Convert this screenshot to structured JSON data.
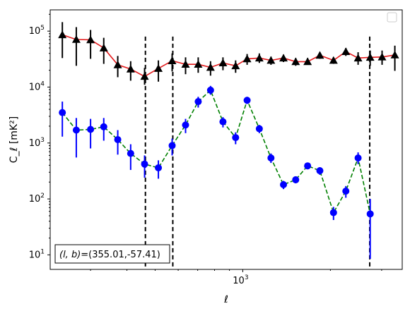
{
  "chart_data": {
    "type": "scatter",
    "title": "",
    "xlabel": "ℓ",
    "ylabel": "C_ℓ [mK²]",
    "x_scale": "log",
    "y_scale": "log",
    "xlim": [
      218,
      3530
    ],
    "ylim": [
      5.5,
      240000
    ],
    "x_tick_labels": [
      {
        "value": 1000,
        "base": "10",
        "exp": "3"
      }
    ],
    "y_tick_labels": [
      {
        "value": 10,
        "base": "10",
        "exp": "1"
      },
      {
        "value": 100,
        "base": "10",
        "exp": "2"
      },
      {
        "value": 1000,
        "base": "10",
        "exp": "3"
      },
      {
        "value": 10000,
        "base": "10",
        "exp": "4"
      },
      {
        "value": 100000,
        "base": "10",
        "exp": "5"
      }
    ],
    "legend_placement": "top-right",
    "annotation": {
      "prefix": "(l, b)",
      "value": "=(355.01,-57.41)"
    },
    "vlines": [
      463,
      575,
      2730
    ],
    "series": [
      {
        "marker": "triangle",
        "marker_color": "#000000",
        "line_color": "#e31a1c",
        "line_style": "solid",
        "points": [
          {
            "x": 240,
            "y": 86000,
            "lo": 33000,
            "hi": 145000
          },
          {
            "x": 268,
            "y": 71000,
            "lo": 24000,
            "hi": 118000
          },
          {
            "x": 300,
            "y": 70000,
            "lo": 32000,
            "hi": 105000
          },
          {
            "x": 333,
            "y": 50000,
            "lo": 26000,
            "hi": 76000
          },
          {
            "x": 372,
            "y": 25000,
            "lo": 15000,
            "hi": 36000
          },
          {
            "x": 412,
            "y": 21000,
            "lo": 13000,
            "hi": 29000
          },
          {
            "x": 460,
            "y": 15500,
            "lo": 11000,
            "hi": 22000
          },
          {
            "x": 513,
            "y": 21500,
            "lo": 12500,
            "hi": 30000
          },
          {
            "x": 572,
            "y": 29500,
            "lo": 19000,
            "hi": 40000
          },
          {
            "x": 636,
            "y": 25500,
            "lo": 17000,
            "hi": 34000
          },
          {
            "x": 703,
            "y": 25500,
            "lo": 18000,
            "hi": 34000
          },
          {
            "x": 775,
            "y": 22500,
            "lo": 16000,
            "hi": 29000
          },
          {
            "x": 855,
            "y": 27000,
            "lo": 20000,
            "hi": 34000
          },
          {
            "x": 945,
            "y": 24000,
            "lo": 18000,
            "hi": 30000
          },
          {
            "x": 1035,
            "y": 32000,
            "lo": 25000,
            "hi": 39000
          },
          {
            "x": 1140,
            "y": 33000,
            "lo": 27000,
            "hi": 40000
          },
          {
            "x": 1250,
            "y": 30000,
            "lo": 25000,
            "hi": 35000
          },
          {
            "x": 1380,
            "y": 33000,
            "lo": 28000,
            "hi": 38000
          },
          {
            "x": 1520,
            "y": 28500,
            "lo": 24000,
            "hi": 33000
          },
          {
            "x": 1670,
            "y": 28500,
            "lo": 25000,
            "hi": 33000
          },
          {
            "x": 1840,
            "y": 37000,
            "lo": 32000,
            "hi": 42000
          },
          {
            "x": 2050,
            "y": 30000,
            "lo": 26000,
            "hi": 34000
          },
          {
            "x": 2260,
            "y": 43000,
            "lo": 36000,
            "hi": 50000
          },
          {
            "x": 2490,
            "y": 33000,
            "lo": 25000,
            "hi": 42000
          },
          {
            "x": 2740,
            "y": 34000,
            "lo": 24000,
            "hi": 45000
          },
          {
            "x": 3010,
            "y": 34500,
            "lo": 25000,
            "hi": 45000
          },
          {
            "x": 3330,
            "y": 37500,
            "lo": 19500,
            "hi": 55000
          }
        ]
      },
      {
        "marker": "circle",
        "marker_color": "#0000ff",
        "line_color": "#008000",
        "line_style": "dashed",
        "points": [
          {
            "x": 240,
            "y": 3500,
            "lo": 1300,
            "hi": 5500
          },
          {
            "x": 268,
            "y": 1700,
            "lo": 550,
            "hi": 2800
          },
          {
            "x": 300,
            "y": 1750,
            "lo": 800,
            "hi": 2700
          },
          {
            "x": 333,
            "y": 1950,
            "lo": 1100,
            "hi": 2800
          },
          {
            "x": 372,
            "y": 1150,
            "lo": 620,
            "hi": 1700
          },
          {
            "x": 412,
            "y": 650,
            "lo": 330,
            "hi": 950
          },
          {
            "x": 460,
            "y": 420,
            "lo": 240,
            "hi": 600
          },
          {
            "x": 513,
            "y": 360,
            "lo": 230,
            "hi": 490
          },
          {
            "x": 572,
            "y": 900,
            "lo": 600,
            "hi": 1200
          },
          {
            "x": 636,
            "y": 2100,
            "lo": 1500,
            "hi": 2700
          },
          {
            "x": 703,
            "y": 5500,
            "lo": 4300,
            "hi": 6700
          },
          {
            "x": 775,
            "y": 8800,
            "lo": 7300,
            "hi": 10500
          },
          {
            "x": 855,
            "y": 2400,
            "lo": 1900,
            "hi": 2900
          },
          {
            "x": 945,
            "y": 1250,
            "lo": 950,
            "hi": 1550
          },
          {
            "x": 1035,
            "y": 5800,
            "lo": 5000,
            "hi": 6700
          },
          {
            "x": 1140,
            "y": 1800,
            "lo": 1500,
            "hi": 2100
          },
          {
            "x": 1250,
            "y": 540,
            "lo": 440,
            "hi": 650
          },
          {
            "x": 1380,
            "y": 180,
            "lo": 150,
            "hi": 210
          },
          {
            "x": 1520,
            "y": 220,
            "lo": 190,
            "hi": 250
          },
          {
            "x": 1670,
            "y": 390,
            "lo": 340,
            "hi": 440
          },
          {
            "x": 1840,
            "y": 320,
            "lo": 270,
            "hi": 370
          },
          {
            "x": 2050,
            "y": 57,
            "lo": 42,
            "hi": 72
          },
          {
            "x": 2260,
            "y": 138,
            "lo": 105,
            "hi": 170
          },
          {
            "x": 2490,
            "y": 540,
            "lo": 420,
            "hi": 680
          },
          {
            "x": 2740,
            "y": 54,
            "lo": 8.5,
            "hi": 100
          }
        ]
      }
    ]
  }
}
